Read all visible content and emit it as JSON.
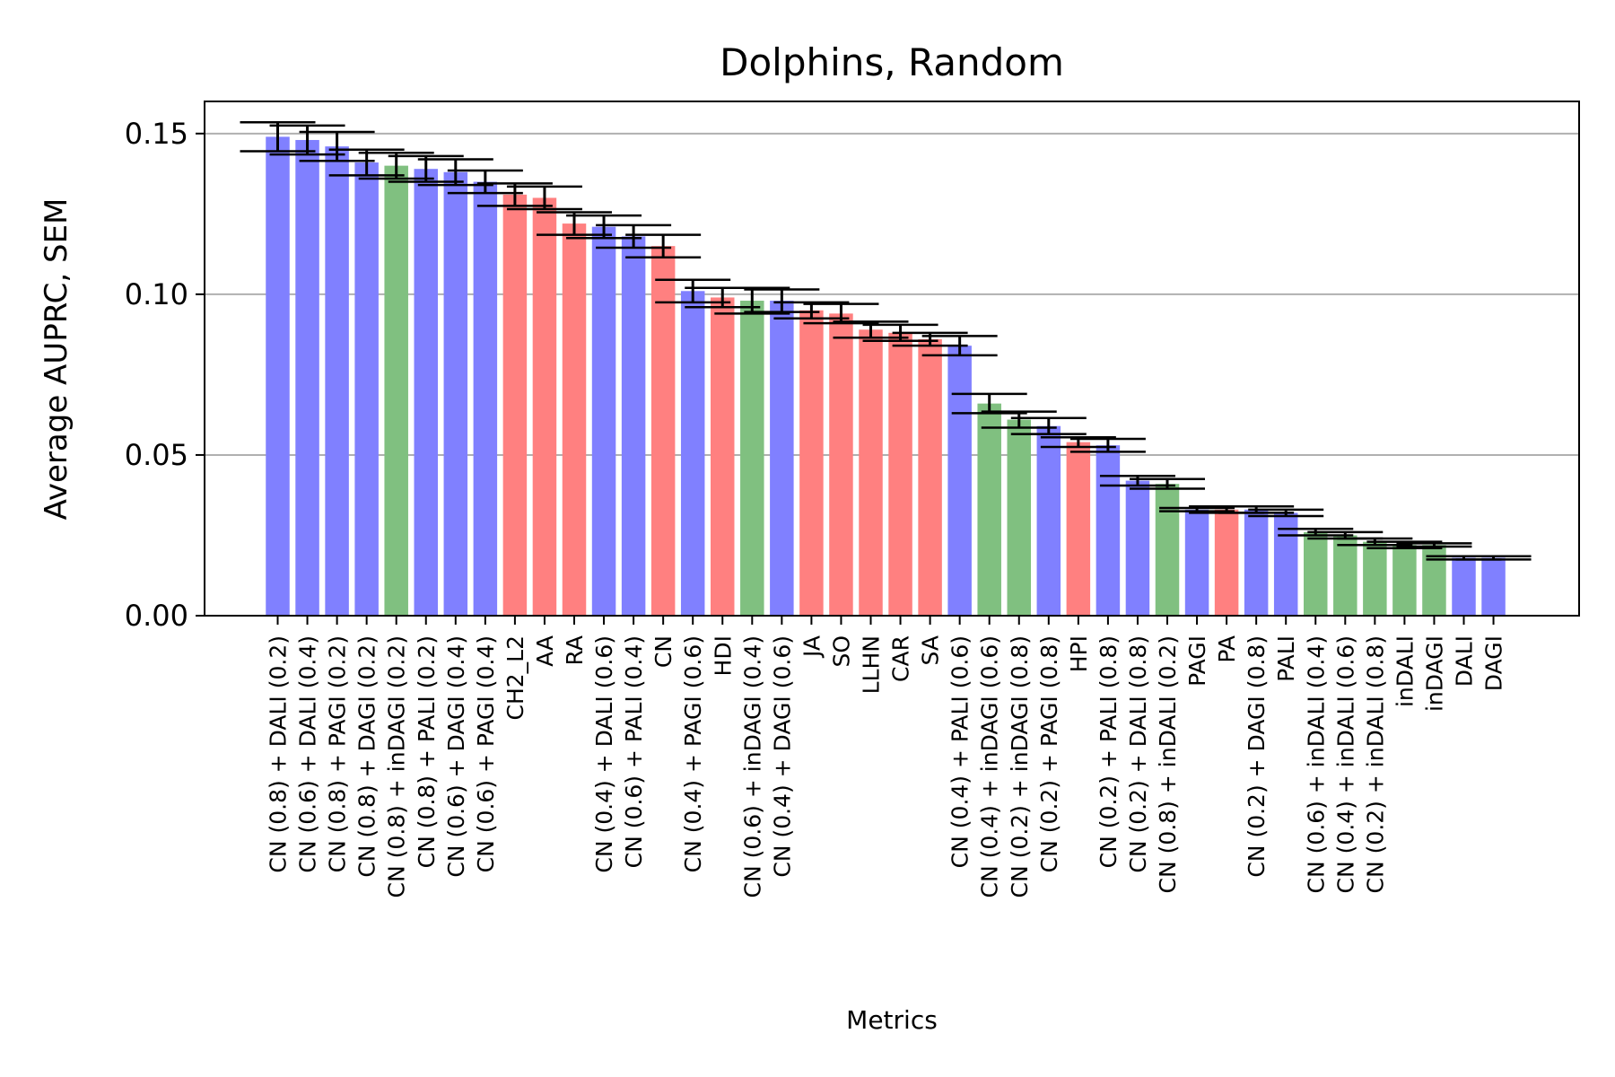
{
  "chart_data": {
    "type": "bar",
    "title": "Dolphins, Random",
    "xlabel": "Metrics",
    "ylabel": "Average AUPRC, SEM",
    "ylim": [
      0,
      0.16
    ],
    "yticks": [
      "0.00",
      "0.05",
      "0.10",
      "0.15"
    ],
    "ytick_values": [
      0,
      0.05,
      0.1,
      0.15
    ],
    "grid": "horizontal",
    "colors": {
      "blue": "#8080ff",
      "red": "#ff8080",
      "green": "#80c080"
    },
    "categories": [
      "CN (0.8) + DALI (0.2)",
      "CN (0.6) + DALI (0.4)",
      "CN (0.8) + PAGI (0.2)",
      "CN (0.8) + DAGI (0.2)",
      "CN (0.8) + inDAGI (0.2)",
      "CN (0.8) + PALI (0.2)",
      "CN (0.6) + DAGI (0.4)",
      "CN (0.6) + PAGI (0.4)",
      "CH2_L2",
      "AA",
      "RA",
      "CN (0.4) + DALI (0.6)",
      "CN (0.6) + PALI (0.4)",
      "CN",
      "CN (0.4) + PAGI (0.6)",
      "HDI",
      "CN (0.6) + inDAGI (0.4)",
      "CN (0.4) + DAGI (0.6)",
      "JA",
      "SO",
      "LLHN",
      "CAR",
      "SA",
      "CN (0.4) + PALI (0.6)",
      "CN (0.4) + inDAGI (0.6)",
      "CN (0.2) + inDAGI (0.8)",
      "CN (0.2) + PAGI (0.8)",
      "HPI",
      "CN (0.2) + PALI (0.8)",
      "CN (0.2) + DALI (0.8)",
      "CN (0.8) + inDALI (0.2)",
      "PAGI",
      "PA",
      "CN (0.2) + DAGI (0.8)",
      "PALI",
      "CN (0.6) + inDALI (0.4)",
      "CN (0.4) + inDALI (0.6)",
      "CN (0.2) + inDALI (0.8)",
      "inDALI",
      "inDAGI",
      "DALI",
      "DAGI"
    ],
    "values": [
      0.149,
      0.148,
      0.146,
      0.141,
      0.14,
      0.139,
      0.138,
      0.135,
      0.131,
      0.13,
      0.122,
      0.121,
      0.118,
      0.115,
      0.101,
      0.099,
      0.098,
      0.098,
      0.095,
      0.094,
      0.089,
      0.088,
      0.086,
      0.084,
      0.066,
      0.061,
      0.059,
      0.054,
      0.053,
      0.042,
      0.041,
      0.033,
      0.033,
      0.033,
      0.032,
      0.026,
      0.025,
      0.023,
      0.022,
      0.022,
      0.018,
      0.018
    ],
    "errors": [
      0.0045,
      0.0045,
      0.0045,
      0.004,
      0.004,
      0.004,
      0.004,
      0.0035,
      0.0035,
      0.0035,
      0.0035,
      0.0035,
      0.0035,
      0.0035,
      0.0035,
      0.003,
      0.004,
      0.0035,
      0.0025,
      0.003,
      0.0025,
      0.0025,
      0.002,
      0.003,
      0.003,
      0.0025,
      0.0025,
      0.0015,
      0.002,
      0.0015,
      0.0015,
      0.0005,
      0.001,
      0.001,
      0.001,
      0.001,
      0.001,
      0.001,
      0.001,
      0.0005,
      0.0005,
      0.0005
    ],
    "bar_colors": [
      "blue",
      "blue",
      "blue",
      "blue",
      "green",
      "blue",
      "blue",
      "blue",
      "red",
      "red",
      "red",
      "blue",
      "blue",
      "red",
      "blue",
      "red",
      "green",
      "blue",
      "red",
      "red",
      "red",
      "red",
      "red",
      "blue",
      "green",
      "green",
      "blue",
      "red",
      "blue",
      "blue",
      "green",
      "blue",
      "red",
      "blue",
      "blue",
      "green",
      "green",
      "green",
      "green",
      "green",
      "blue",
      "blue"
    ]
  }
}
